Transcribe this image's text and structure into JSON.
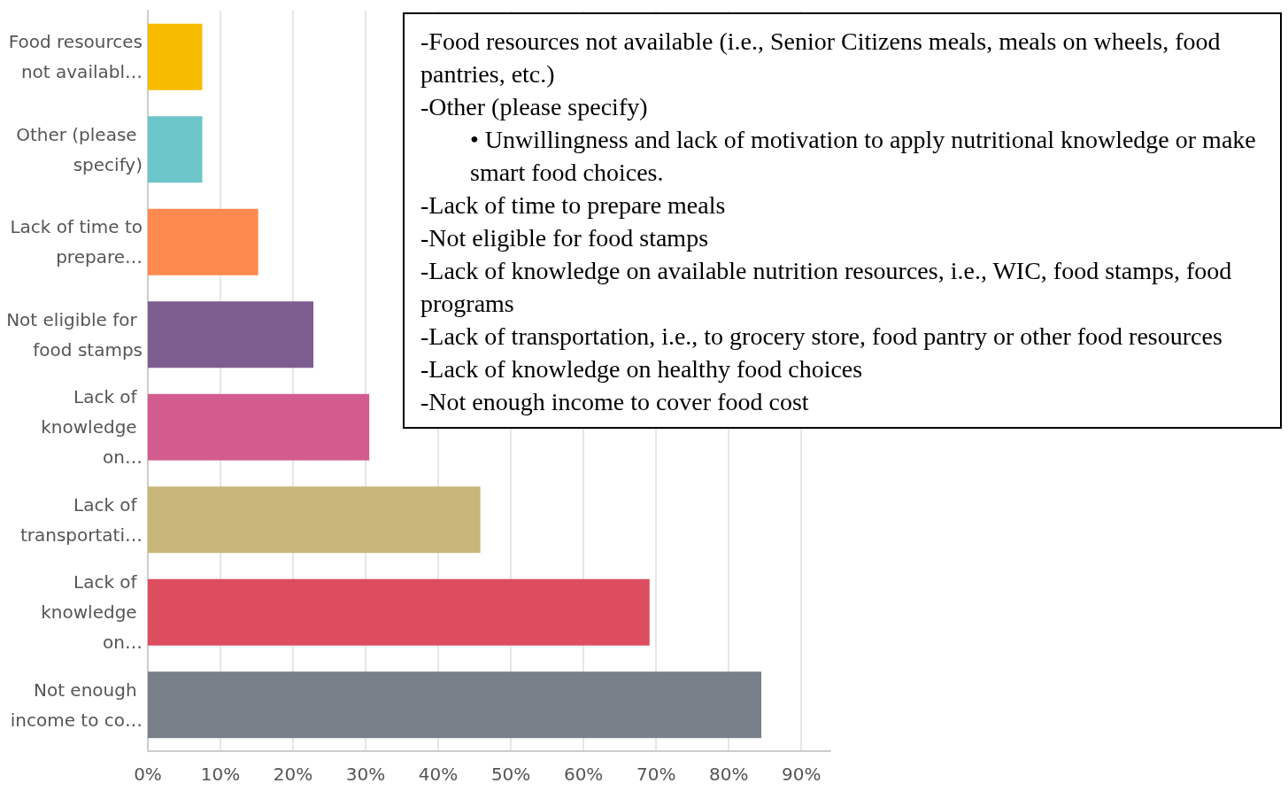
{
  "chart_data": {
    "type": "bar",
    "orientation": "horizontal",
    "categories": [
      "Food resources not availabl…",
      "Other (please specify)",
      "Lack of time to prepare…",
      "Not eligible for food stamps",
      "Lack of knowledge on…",
      "Lack of transportati…",
      "Lack of knowledge on…",
      "Not enough income to co…"
    ],
    "values": [
      7.5,
      7.5,
      15.2,
      22.8,
      30.5,
      45.8,
      69.1,
      84.5
    ],
    "colors": [
      "#f7bb00",
      "#6cc5c9",
      "#fe8a4f",
      "#7d5d8f",
      "#d35c8f",
      "#c8b77a",
      "#dc4d5f",
      "#787f88"
    ],
    "xlim": [
      0,
      94
    ],
    "xticks": [
      {
        "value": 0,
        "label": "0%"
      },
      {
        "value": 10,
        "label": "10%"
      },
      {
        "value": 20,
        "label": "20%"
      },
      {
        "value": 30,
        "label": "30%"
      },
      {
        "value": 40,
        "label": "40%"
      },
      {
        "value": 50,
        "label": "50%"
      },
      {
        "value": 60,
        "label": "60%"
      },
      {
        "value": 70,
        "label": "70%"
      },
      {
        "value": 80,
        "label": "80%"
      },
      {
        "value": 90,
        "label": "90%"
      }
    ],
    "grid": "x",
    "annotations": [
      "-Food resources not available (i.e., Senior Citizens meals, meals on wheels, food pantries, etc.)",
      "-Other (please specify)",
      "• Unwillingness and lack of motivation to apply nutritional knowledge or make smart food choices.",
      "-Lack of time to prepare meals",
      "-Not eligible for food stamps",
      "-Lack of knowledge on available nutrition resources, i.e., WIC, food stamps, food programs",
      "-Lack of transportation, i.e., to grocery store, food pantry or other food resources",
      "-Lack of knowledge on healthy food choices",
      "-Not enough income to cover food cost"
    ]
  }
}
